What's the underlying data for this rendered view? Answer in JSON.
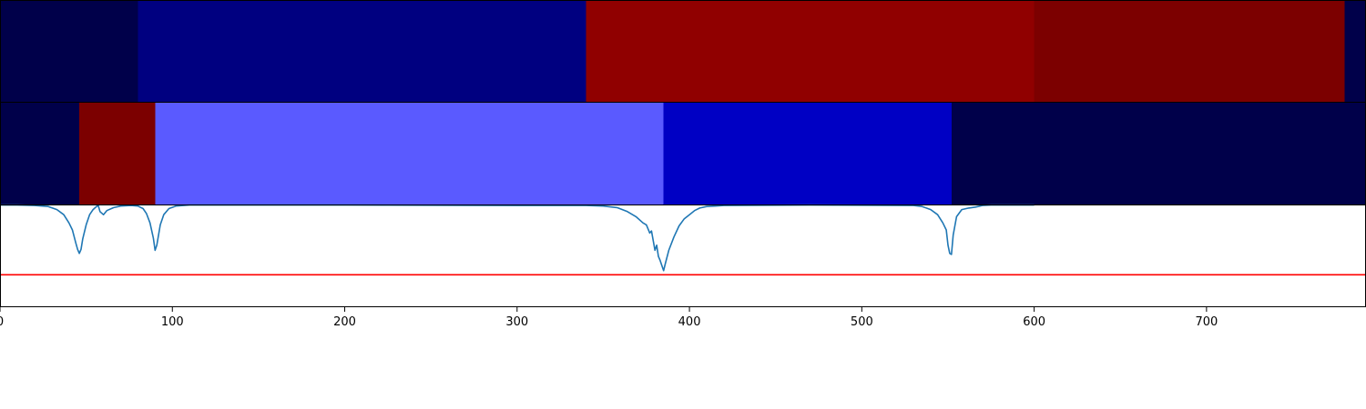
{
  "chart_data": {
    "type": "heatmap",
    "xlim": [
      0,
      792
    ],
    "xticks": [
      0,
      100,
      200,
      300,
      400,
      500,
      600,
      700
    ],
    "tick_labels": [
      "0",
      "100",
      "200",
      "300",
      "400",
      "500",
      "600",
      "700"
    ],
    "grid": false,
    "segment_rows": [
      {
        "segments": [
          {
            "start": 0,
            "end": 80,
            "color": "#00004a"
          },
          {
            "start": 80,
            "end": 340,
            "color": "#000080"
          },
          {
            "start": 340,
            "end": 600,
            "color": "#900000"
          },
          {
            "start": 600,
            "end": 780,
            "color": "#7c0000"
          },
          {
            "start": 780,
            "end": 792,
            "color": "#00004a"
          }
        ]
      },
      {
        "segments": [
          {
            "start": 0,
            "end": 46,
            "color": "#00004a"
          },
          {
            "start": 46,
            "end": 90,
            "color": "#7c0000"
          },
          {
            "start": 90,
            "end": 385,
            "color": "#5a5aff"
          },
          {
            "start": 385,
            "end": 552,
            "color": "#0000c4"
          },
          {
            "start": 552,
            "end": 792,
            "color": "#00004a"
          }
        ]
      }
    ],
    "line_panel": {
      "ylim": [
        0,
        1
      ],
      "series_color": "#1f77b4",
      "threshold": 0.31,
      "threshold_color": "#ff0000",
      "points": [
        [
          0,
          0.995
        ],
        [
          10,
          0.995
        ],
        [
          20,
          0.99
        ],
        [
          28,
          0.98
        ],
        [
          33,
          0.95
        ],
        [
          37,
          0.9
        ],
        [
          40,
          0.82
        ],
        [
          42,
          0.75
        ],
        [
          44,
          0.62
        ],
        [
          45,
          0.56
        ],
        [
          46,
          0.52
        ],
        [
          47,
          0.56
        ],
        [
          48,
          0.66
        ],
        [
          50,
          0.8
        ],
        [
          52,
          0.9
        ],
        [
          54,
          0.95
        ],
        [
          56,
          0.98
        ],
        [
          57,
          0.99
        ],
        [
          58,
          0.93
        ],
        [
          60,
          0.9
        ],
        [
          62,
          0.94
        ],
        [
          66,
          0.97
        ],
        [
          70,
          0.985
        ],
        [
          76,
          0.99
        ],
        [
          80,
          0.985
        ],
        [
          83,
          0.96
        ],
        [
          85,
          0.91
        ],
        [
          87,
          0.82
        ],
        [
          89,
          0.67
        ],
        [
          90,
          0.55
        ],
        [
          91,
          0.6
        ],
        [
          93,
          0.8
        ],
        [
          95,
          0.9
        ],
        [
          98,
          0.96
        ],
        [
          102,
          0.985
        ],
        [
          110,
          0.995
        ],
        [
          200,
          0.995
        ],
        [
          300,
          0.99
        ],
        [
          340,
          0.99
        ],
        [
          350,
          0.985
        ],
        [
          358,
          0.97
        ],
        [
          364,
          0.93
        ],
        [
          369,
          0.88
        ],
        [
          373,
          0.82
        ],
        [
          375,
          0.8
        ],
        [
          377,
          0.72
        ],
        [
          378,
          0.74
        ],
        [
          380,
          0.55
        ],
        [
          381,
          0.6
        ],
        [
          382,
          0.49
        ],
        [
          383,
          0.45
        ],
        [
          384,
          0.4
        ],
        [
          385,
          0.35
        ],
        [
          386,
          0.42
        ],
        [
          388,
          0.55
        ],
        [
          391,
          0.68
        ],
        [
          394,
          0.79
        ],
        [
          397,
          0.86
        ],
        [
          400,
          0.9
        ],
        [
          403,
          0.94
        ],
        [
          406,
          0.965
        ],
        [
          410,
          0.98
        ],
        [
          415,
          0.985
        ],
        [
          420,
          0.99
        ],
        [
          470,
          0.995
        ],
        [
          530,
          0.99
        ],
        [
          535,
          0.98
        ],
        [
          540,
          0.95
        ],
        [
          544,
          0.9
        ],
        [
          547,
          0.82
        ],
        [
          549,
          0.75
        ],
        [
          550,
          0.6
        ],
        [
          551,
          0.52
        ],
        [
          552,
          0.51
        ],
        [
          553,
          0.7
        ],
        [
          555,
          0.88
        ],
        [
          558,
          0.95
        ],
        [
          562,
          0.965
        ],
        [
          566,
          0.975
        ],
        [
          570,
          0.99
        ],
        [
          575,
          0.995
        ],
        [
          600,
          0.995
        ]
      ]
    }
  }
}
